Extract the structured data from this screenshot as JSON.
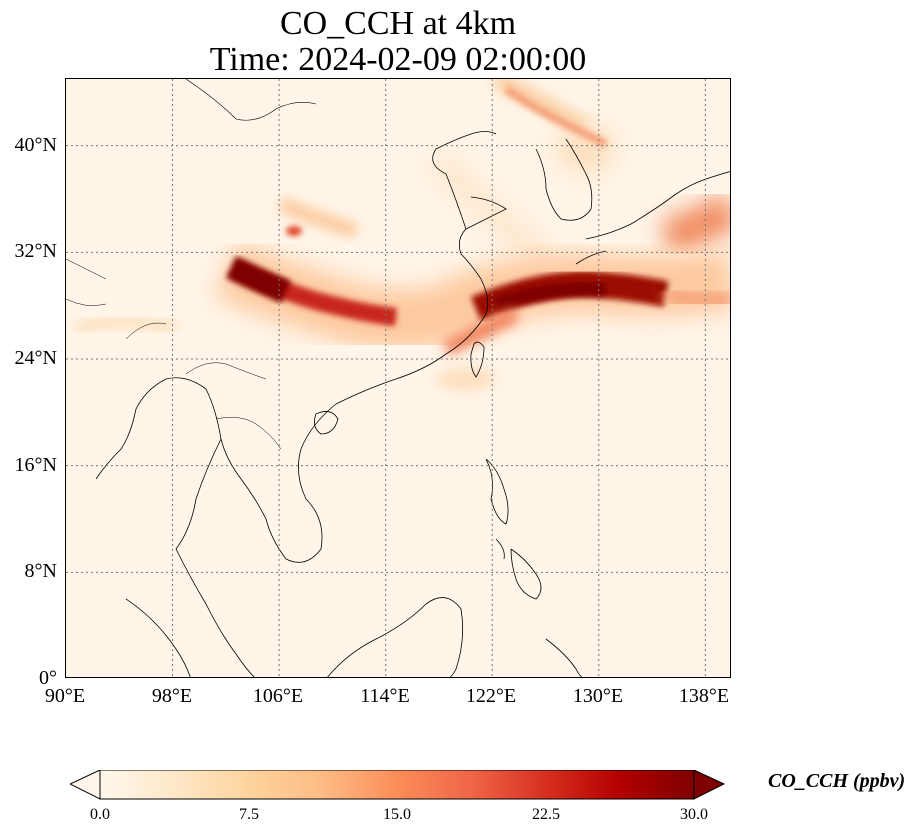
{
  "title": {
    "line1": "CO_CCH at 4km",
    "line2": "Time: 2024-02-09 02:00:00"
  },
  "map": {
    "extent": {
      "lon_min": 90,
      "lon_max": 140,
      "lat_min": 0,
      "lat_max": 45
    },
    "x_ticks": [
      "90°E",
      "98°E",
      "106°E",
      "114°E",
      "122°E",
      "130°E",
      "138°E"
    ],
    "y_ticks": [
      "0°",
      "8°N",
      "16°N",
      "24°N",
      "32°N",
      "40°N"
    ],
    "gridlines": true,
    "colormap": "OrRd"
  },
  "colorbar": {
    "label": "CO_CCH (ppbv)",
    "ticks": [
      "0.0",
      "7.5",
      "15.0",
      "22.5",
      "30.0"
    ],
    "min": 0,
    "max": 30,
    "extend": "both",
    "colors": [
      "#fff7ec",
      "#fee8c8",
      "#fdd49e",
      "#fdbb84",
      "#fc8d59",
      "#ef6548",
      "#d7301f",
      "#b30000",
      "#7f0000"
    ]
  }
}
